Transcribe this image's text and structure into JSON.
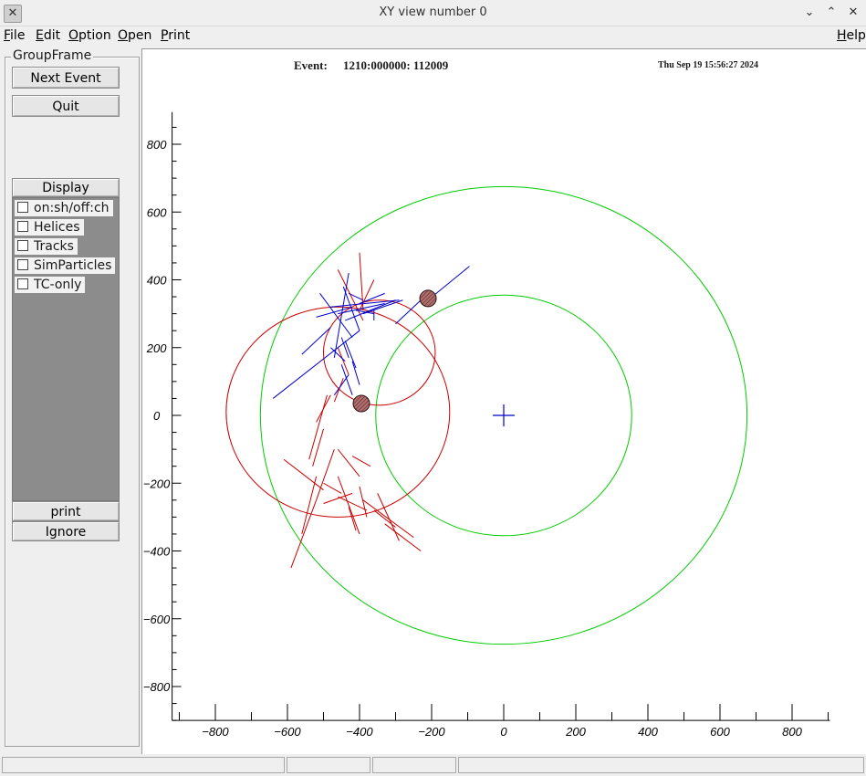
{
  "window": {
    "title": "XY view number 0",
    "controls": [
      "minimize",
      "maximize",
      "close"
    ]
  },
  "menubar": {
    "items": [
      "File",
      "Edit",
      "Option",
      "Open",
      "Print"
    ],
    "help": "Help"
  },
  "leftpanel": {
    "group_title": "GroupFrame",
    "next_event_label": "Next Event",
    "quit_label": "Quit",
    "display_title": "Display",
    "checkboxes": [
      {
        "label": "on:sh/off:ch",
        "checked": false
      },
      {
        "label": "Helices",
        "checked": false
      },
      {
        "label": "Tracks",
        "checked": false
      },
      {
        "label": "SimParticles",
        "checked": false
      },
      {
        "label": "TC-only",
        "checked": false
      }
    ],
    "print_label": "print",
    "ignore_label": "Ignore"
  },
  "canvas": {
    "event_label": "Event:",
    "event_value": "1210:000000: 112009",
    "timestamp": "Thu Sep 19 15:56:27 2024"
  },
  "chart_data": {
    "type": "scatter",
    "xlim": [
      -920,
      905
    ],
    "ylim": [
      -900,
      895
    ],
    "x_ticks": [
      -800,
      -600,
      -400,
      -200,
      0,
      200,
      400,
      600,
      800
    ],
    "y_ticks": [
      800,
      600,
      400,
      200,
      0,
      -200,
      -400,
      -600,
      -800
    ],
    "colors": {
      "detector": "#00cc00",
      "helix": "#cc0000",
      "blue_hits": "#0000cc",
      "red_hits": "#cc0000",
      "axis": "#000000",
      "marker_fill": "#b46e6e"
    },
    "detector_circles": [
      {
        "cx": 0,
        "cy": 0,
        "r": 675
      },
      {
        "cx": 0,
        "cy": 0,
        "r": 355
      }
    ],
    "helices": [
      {
        "cx": -460,
        "cy": 10,
        "r": 310
      },
      {
        "cx": -345,
        "cy": 185,
        "r": 155
      }
    ],
    "origin_marker": {
      "x": 0,
      "y": 0
    },
    "calo_clusters": [
      {
        "x": -210,
        "y": 345
      },
      {
        "x": -395,
        "y": 35
      }
    ],
    "blue_segments": [
      [
        -640,
        50,
        -400,
        250
      ],
      [
        -510,
        360,
        -420,
        230
      ],
      [
        -430,
        420,
        -470,
        170
      ],
      [
        -445,
        380,
        -400,
        250
      ],
      [
        -480,
        260,
        -560,
        180
      ],
      [
        -520,
        290,
        -420,
        320
      ],
      [
        -480,
        320,
        -290,
        340
      ],
      [
        -460,
        300,
        -330,
        330
      ],
      [
        -440,
        280,
        -300,
        340
      ],
      [
        -390,
        300,
        -280,
        340
      ],
      [
        -400,
        330,
        -330,
        360
      ],
      [
        -300,
        270,
        -210,
        360
      ],
      [
        -210,
        340,
        -95,
        440
      ],
      [
        -450,
        230,
        -430,
        170
      ],
      [
        -480,
        200,
        -440,
        160
      ],
      [
        -430,
        120,
        -470,
        60
      ],
      [
        -420,
        160,
        -400,
        90
      ],
      [
        -440,
        220,
        -410,
        140
      ],
      [
        -450,
        150,
        -420,
        60
      ],
      [
        -360,
        280,
        -360,
        310
      ],
      [
        -430,
        360,
        -390,
        340
      ],
      [
        -410,
        310,
        -360,
        300
      ]
    ],
    "red_segments": [
      [
        -460,
        430,
        -390,
        280
      ],
      [
        -400,
        480,
        -390,
        310
      ],
      [
        -360,
        400,
        -400,
        310
      ],
      [
        -460,
        200,
        -430,
        120
      ],
      [
        -445,
        110,
        -470,
        40
      ],
      [
        -490,
        60,
        -540,
        -130
      ],
      [
        -520,
        -20,
        -480,
        60
      ],
      [
        -500,
        -40,
        -530,
        -150
      ],
      [
        -560,
        -350,
        -520,
        -180
      ],
      [
        -590,
        -450,
        -520,
        -250
      ],
      [
        -520,
        -250,
        -470,
        -100
      ],
      [
        -610,
        -130,
        -500,
        -220
      ],
      [
        -500,
        -200,
        -450,
        -230
      ],
      [
        -460,
        -240,
        -380,
        -280
      ],
      [
        -500,
        -260,
        -420,
        -230
      ],
      [
        -430,
        -270,
        -410,
        -340
      ],
      [
        -460,
        -180,
        -400,
        -350
      ],
      [
        -400,
        -210,
        -380,
        -300
      ],
      [
        -350,
        -230,
        -290,
        -370
      ],
      [
        -390,
        -250,
        -250,
        -360
      ],
      [
        -330,
        -320,
        -230,
        -400
      ],
      [
        -360,
        -280,
        -300,
        -330
      ],
      [
        -420,
        -120,
        -370,
        -150
      ],
      [
        -460,
        -100,
        -400,
        -180
      ]
    ]
  }
}
